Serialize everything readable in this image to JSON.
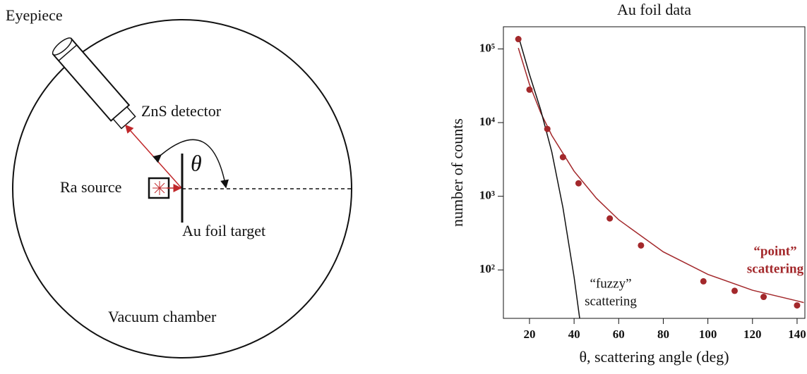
{
  "diagram": {
    "labels": {
      "eyepiece": "Eyepiece",
      "detector": "ZnS detector",
      "angle": "θ",
      "source": "Ra source",
      "target": "Au foil target",
      "chamber": "Vacuum chamber"
    }
  },
  "chart_data": {
    "type": "scatter",
    "title": "Au foil data",
    "x_label": "θ, scattering angle (deg)",
    "y_label": "number of counts",
    "log_y": true,
    "color": "#a3282b",
    "x": [
      15,
      20,
      28,
      35,
      42,
      56,
      70,
      98,
      112,
      125,
      140
    ],
    "values": [
      136000,
      28000,
      8200,
      3400,
      1500,
      500,
      215,
      70,
      52,
      43,
      33
    ],
    "curves": [
      {
        "color": "#a3282b",
        "x": [
          15,
          20,
          25,
          30,
          40,
          50,
          60,
          80,
          100,
          120,
          140,
          143
        ],
        "values": [
          103000,
          33000,
          13700,
          6700,
          2190,
          940,
          480,
          176,
          87,
          53,
          38,
          36
        ]
      },
      {
        "color": "#111111",
        "x": [
          15,
          20,
          25,
          30,
          35,
          40,
          42.5
        ],
        "values": [
          150000,
          45000,
          15000,
          4000,
          700,
          80,
          22
        ]
      }
    ],
    "annotations": [
      {
        "lines": [
          "“fuzzy”",
          "scattering"
        ],
        "color": "#111111",
        "bold": false
      },
      {
        "lines": [
          "“point”",
          "scattering"
        ],
        "color": "#a3282b",
        "bold": true
      }
    ],
    "xlim": [
      8.3,
      143.5
    ],
    "ylim": [
      22,
      200000
    ],
    "xticks": [
      20,
      40,
      60,
      80,
      100,
      120,
      140
    ],
    "yticks": [
      {
        "value": 100,
        "label": "10²"
      },
      {
        "value": 1000,
        "label": "10³"
      },
      {
        "value": 10000,
        "label": "10⁴"
      },
      {
        "value": 100000,
        "label": "10⁵"
      }
    ]
  }
}
